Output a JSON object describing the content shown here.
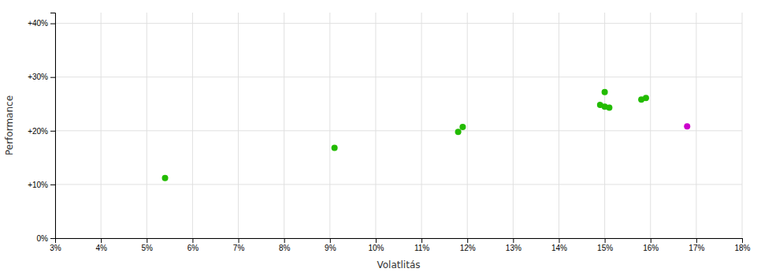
{
  "chart_data": {
    "type": "scatter",
    "xlabel": "Volatlitás",
    "ylabel": "Performance",
    "series": [
      {
        "color": "#22bb00",
        "marker": "circle",
        "x": [
          0.054,
          0.091,
          0.118,
          0.119,
          0.149,
          0.15,
          0.151,
          0.15,
          0.158,
          0.159
        ],
        "values": [
          0.112,
          0.168,
          0.198,
          0.207,
          0.248,
          0.245,
          0.243,
          0.272,
          0.258,
          0.261
        ]
      },
      {
        "color": "#cc00cc",
        "marker": "circle",
        "x": [
          0.168
        ],
        "values": [
          0.208
        ]
      }
    ],
    "xlim": [
      0.03,
      0.18
    ],
    "ylim": [
      0.0,
      0.42
    ],
    "xticks": [
      {
        "value": 0.03,
        "label": "3%"
      },
      {
        "value": 0.04,
        "label": "4%"
      },
      {
        "value": 0.05,
        "label": "5%"
      },
      {
        "value": 0.06,
        "label": "6%"
      },
      {
        "value": 0.07,
        "label": "7%"
      },
      {
        "value": 0.08,
        "label": "8%"
      },
      {
        "value": 0.09,
        "label": "9%"
      },
      {
        "value": 0.1,
        "label": "10%"
      },
      {
        "value": 0.11,
        "label": "11%"
      },
      {
        "value": 0.12,
        "label": "12%"
      },
      {
        "value": 0.13,
        "label": "13%"
      },
      {
        "value": 0.14,
        "label": "14%"
      },
      {
        "value": 0.15,
        "label": "15%"
      },
      {
        "value": 0.16,
        "label": "16%"
      },
      {
        "value": 0.17,
        "label": "17%"
      },
      {
        "value": 0.18,
        "label": "18%"
      }
    ],
    "yticks": [
      {
        "value": 0.0,
        "label": "0%"
      },
      {
        "value": 0.1,
        "label": "+10%"
      },
      {
        "value": 0.2,
        "label": "+20%"
      },
      {
        "value": 0.3,
        "label": "+30%"
      },
      {
        "value": 0.4,
        "label": "+40%"
      }
    ],
    "grid": true
  }
}
